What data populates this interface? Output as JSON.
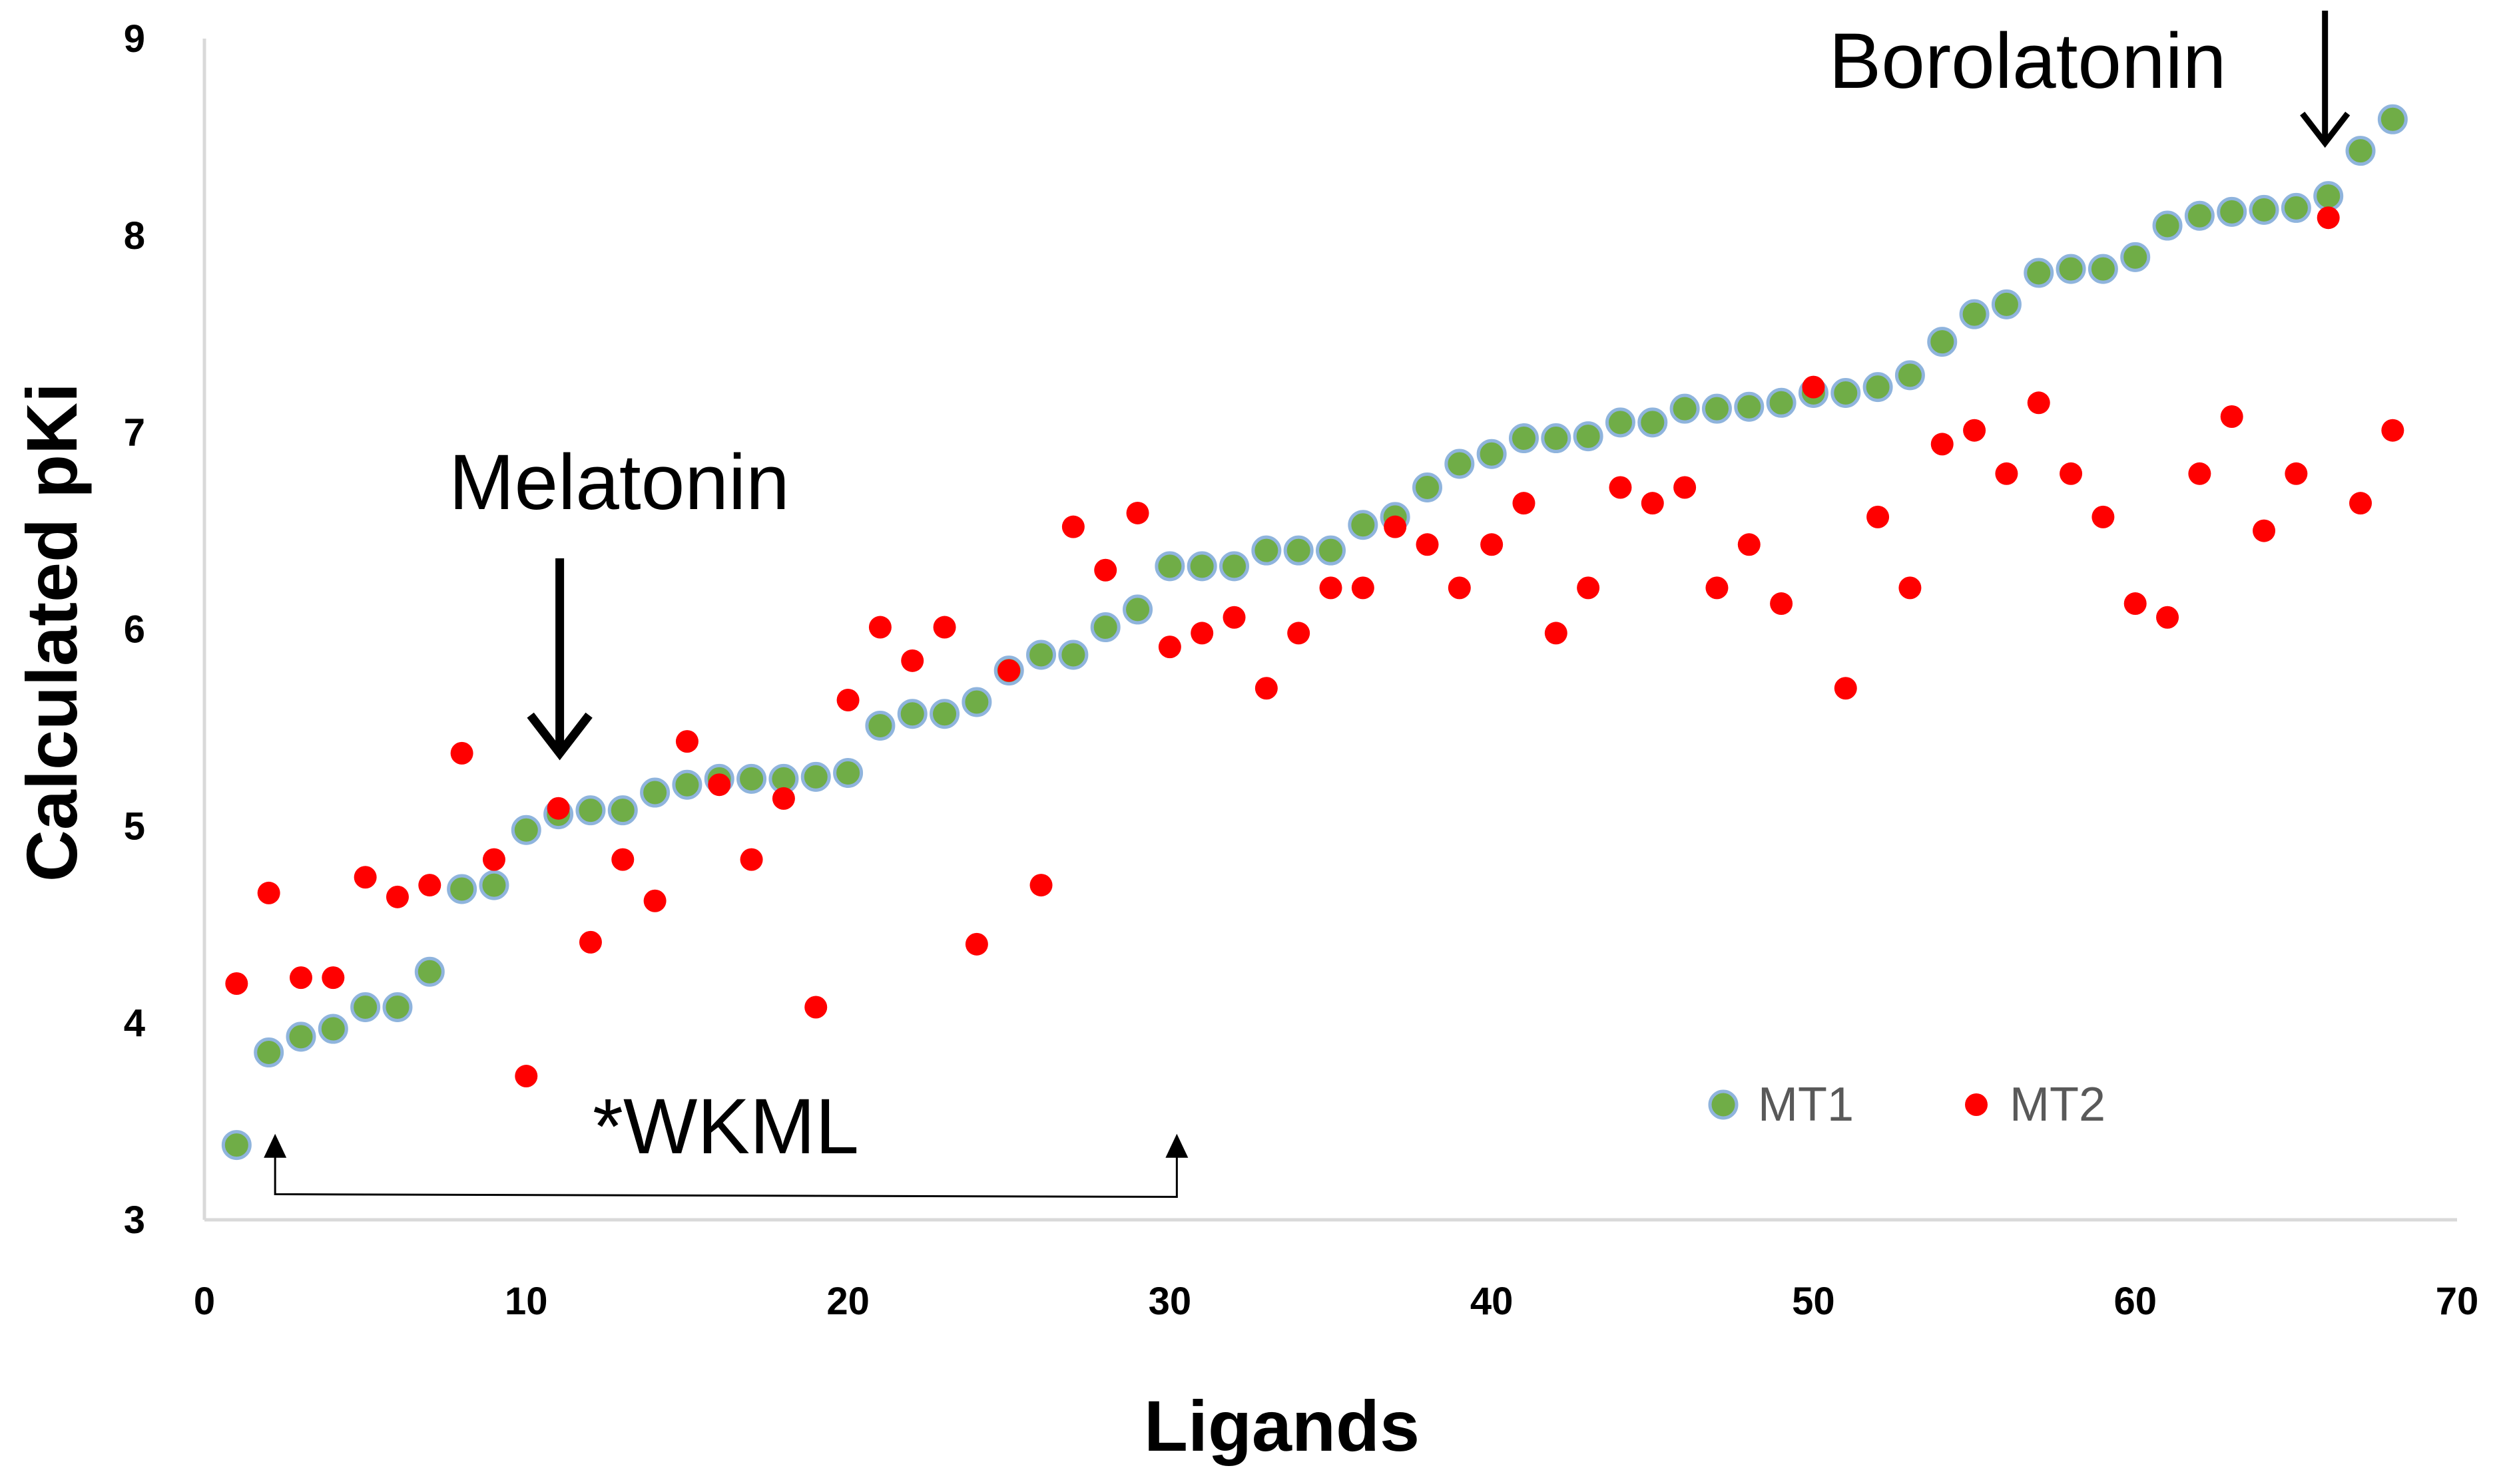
{
  "chart_data": {
    "type": "scatter",
    "title": "",
    "xlabel": "Ligands",
    "ylabel": "Calculated pKi",
    "xlim": [
      0,
      70
    ],
    "ylim": [
      3,
      9
    ],
    "xticks": [
      0,
      10,
      20,
      30,
      40,
      50,
      60,
      70
    ],
    "yticks": [
      3,
      4,
      5,
      6,
      7,
      8,
      9
    ],
    "grid": false,
    "legend_position": "bottom-right",
    "series": [
      {
        "name": "MT1",
        "color": "#70AD47",
        "edge_color": "#8FB4DD",
        "x": [
          1,
          2,
          3,
          4,
          5,
          6,
          7,
          8,
          9,
          10,
          11,
          12,
          13,
          14,
          15,
          16,
          17,
          18,
          19,
          20,
          21,
          22,
          23,
          24,
          25,
          26,
          27,
          28,
          29,
          30,
          31,
          32,
          33,
          34,
          35,
          36,
          37,
          38,
          39,
          40,
          41,
          42,
          43,
          44,
          45,
          46,
          47,
          48,
          49,
          50,
          51,
          52,
          53,
          54,
          55,
          56,
          57,
          58,
          59,
          60,
          61,
          62,
          63,
          64,
          65,
          66,
          67,
          68
        ],
        "y": [
          3.38,
          3.85,
          3.93,
          3.97,
          4.08,
          4.08,
          4.26,
          4.68,
          4.7,
          4.98,
          5.06,
          5.08,
          5.08,
          5.17,
          5.21,
          5.24,
          5.24,
          5.24,
          5.25,
          5.27,
          5.51,
          5.57,
          5.57,
          5.63,
          5.79,
          5.87,
          5.87,
          6.01,
          6.1,
          6.32,
          6.32,
          6.32,
          6.4,
          6.4,
          6.4,
          6.53,
          6.57,
          6.72,
          6.84,
          6.89,
          6.97,
          6.97,
          6.98,
          7.05,
          7.05,
          7.12,
          7.12,
          7.13,
          7.15,
          7.2,
          7.2,
          7.23,
          7.29,
          7.46,
          7.6,
          7.65,
          7.81,
          7.83,
          7.83,
          7.89,
          8.05,
          8.1,
          8.12,
          8.13,
          8.14,
          8.2,
          8.43,
          8.59
        ]
      },
      {
        "name": "MT2",
        "color": "#FF0000",
        "x": [
          1,
          2,
          3,
          4,
          5,
          6,
          7,
          8,
          9,
          10,
          11,
          12,
          13,
          14,
          15,
          16,
          17,
          18,
          19,
          20,
          21,
          22,
          23,
          24,
          25,
          26,
          27,
          28,
          29,
          30,
          31,
          32,
          33,
          34,
          35,
          36,
          37,
          38,
          39,
          40,
          41,
          42,
          43,
          44,
          45,
          46,
          47,
          48,
          49,
          50,
          51,
          52,
          53,
          54,
          55,
          56,
          57,
          58,
          59,
          60,
          61,
          62,
          63,
          64,
          65,
          66,
          67,
          68
        ],
        "y": [
          4.2,
          4.66,
          4.23,
          4.23,
          4.74,
          4.64,
          4.7,
          5.37,
          4.83,
          3.73,
          5.09,
          4.41,
          4.83,
          4.62,
          5.43,
          5.21,
          4.83,
          5.14,
          4.08,
          5.64,
          6.01,
          5.84,
          6.01,
          4.4,
          5.79,
          4.7,
          6.52,
          6.3,
          6.59,
          5.91,
          5.98,
          6.06,
          5.7,
          5.98,
          6.21,
          6.21,
          6.52,
          6.43,
          6.21,
          6.43,
          6.64,
          5.98,
          6.21,
          6.72,
          6.64,
          6.72,
          6.21,
          6.43,
          6.13,
          7.23,
          5.7,
          6.57,
          6.21,
          6.94,
          7.01,
          6.79,
          7.15,
          6.79,
          6.57,
          6.13,
          6.06,
          6.79,
          7.08,
          6.5,
          6.79,
          8.09,
          6.64,
          7.01
        ]
      }
    ],
    "annotations": [
      {
        "text": "Melatonin",
        "arrow_x": 11,
        "arrow_from_y": 6.36,
        "arrow_to_y": 5.37
      },
      {
        "text": "Borolatonin",
        "arrow_x": 66,
        "arrow_from_y": 9.15,
        "arrow_to_y": 8.47
      },
      {
        "text": "*WKML",
        "bracket_from_x": 2.3,
        "bracket_to_x": 30.3,
        "bracket_y": 3.13,
        "bracket_top_y": 3.43
      }
    ]
  }
}
